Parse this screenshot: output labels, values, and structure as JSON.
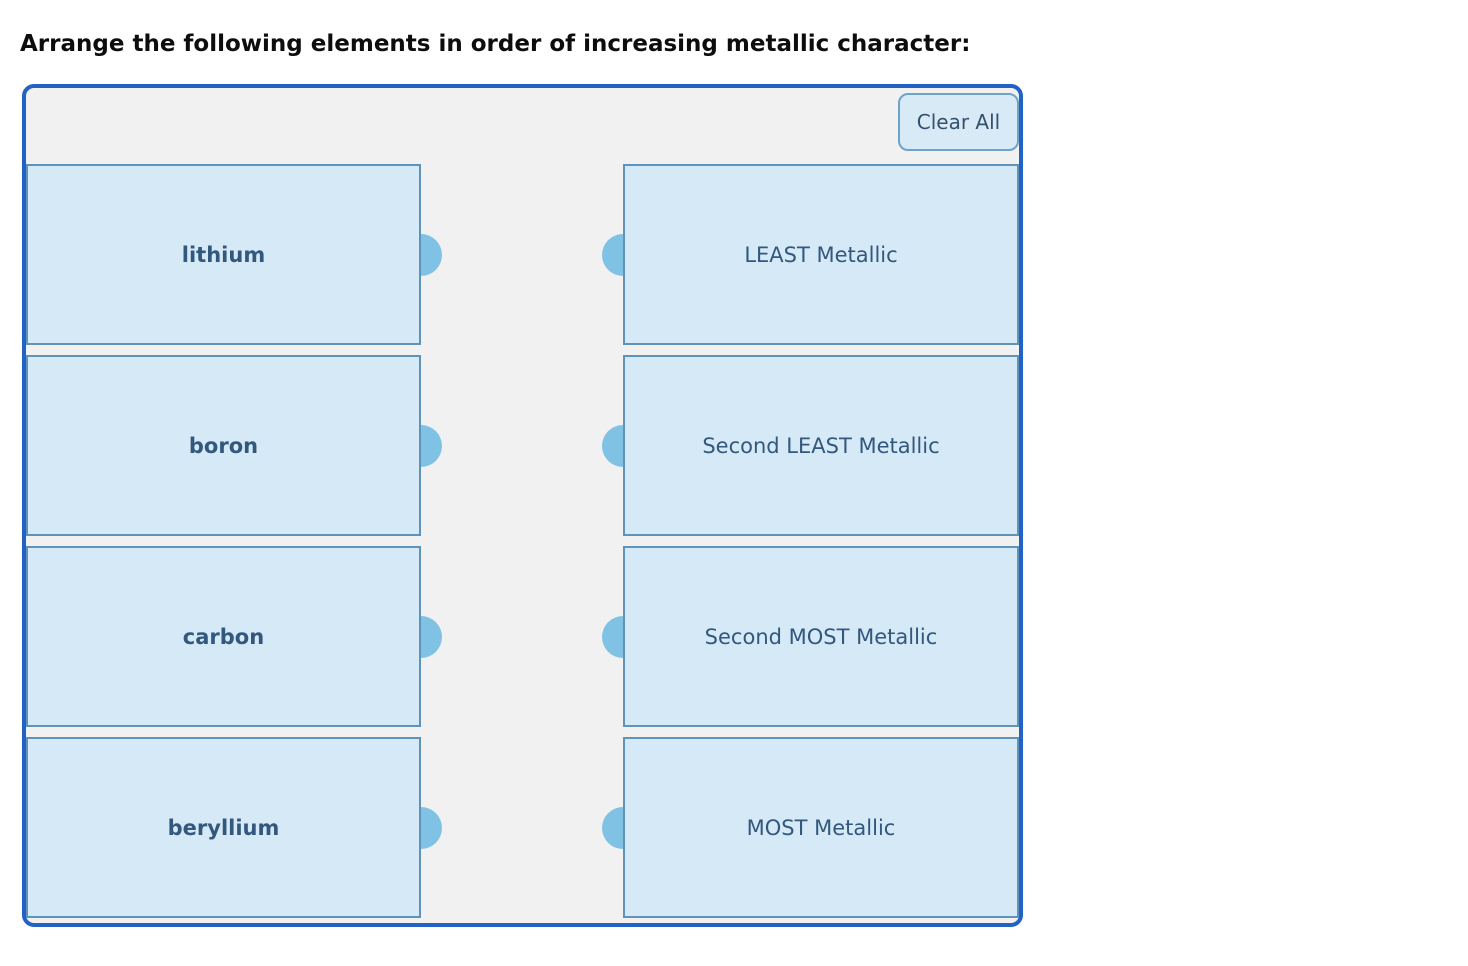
{
  "page": {
    "title": "Arrange the following elements in order of increasing metallic character:"
  },
  "board": {
    "clear_all_label": "Clear All",
    "left_items": [
      {
        "label": "lithium"
      },
      {
        "label": "boron"
      },
      {
        "label": "carbon"
      },
      {
        "label": "beryllium"
      }
    ],
    "right_items": [
      {
        "label": "LEAST Metallic"
      },
      {
        "label": "Second LEAST Metallic"
      },
      {
        "label": "Second MOST Metallic"
      },
      {
        "label": "MOST Metallic"
      }
    ],
    "colors": {
      "board_border": "#2262c4",
      "board_background": "#f1f1f2",
      "card_background": "#d6e9f7",
      "card_border": "#6093b9",
      "card_text": "#33587d",
      "connector_dot": "#7fc2e4",
      "button_background": "#d8eaf6",
      "button_border": "#6ea3c9",
      "button_text": "#33516e"
    }
  }
}
